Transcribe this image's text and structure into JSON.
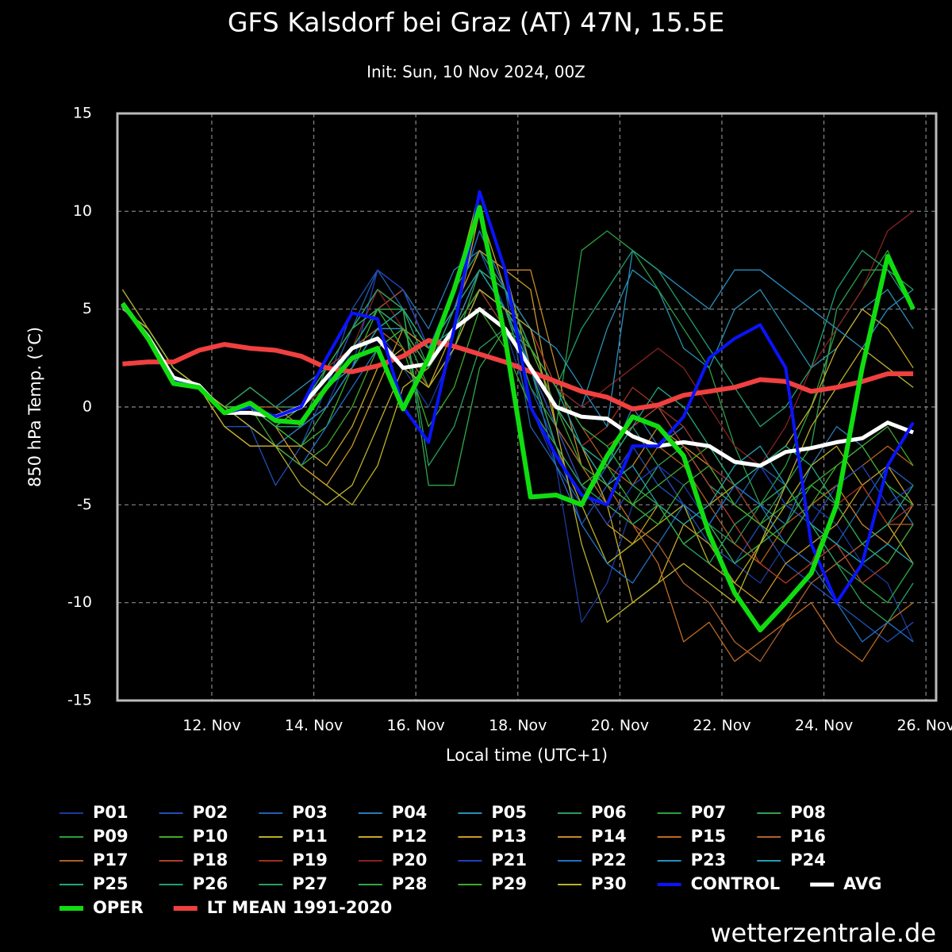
{
  "chart_data": {
    "type": "line",
    "title": "GFS Kalsdorf bei Graz (AT) 47N, 15.5E",
    "subtitle": "Init: Sun, 10 Nov 2024, 00Z",
    "xlabel": "Local time (UTC+1)",
    "ylabel": "850 hPa Temp. (°C)",
    "source": "wetterzentrale.de",
    "grid": true,
    "xlim": [
      10.15,
      26.2
    ],
    "ylim": [
      -15,
      15
    ],
    "yticks": [
      -15,
      -10,
      -5,
      0,
      5,
      10,
      15
    ],
    "xticks": [
      {
        "value": 12,
        "label": "12. Nov"
      },
      {
        "value": 14,
        "label": "14. Nov"
      },
      {
        "value": 16,
        "label": "16. Nov"
      },
      {
        "value": 18,
        "label": "18. Nov"
      },
      {
        "value": 20,
        "label": "20. Nov"
      },
      {
        "value": 22,
        "label": "22. Nov"
      },
      {
        "value": 24,
        "label": "24. Nov"
      },
      {
        "value": 26,
        "label": "26. Nov"
      }
    ],
    "x": [
      10.25,
      10.75,
      11.25,
      11.75,
      12.25,
      12.75,
      13.25,
      13.75,
      14.25,
      14.75,
      15.25,
      15.75,
      16.25,
      16.75,
      17.25,
      17.75,
      18.25,
      18.75,
      19.25,
      19.75,
      20.25,
      20.75,
      21.25,
      21.75,
      22.25,
      22.75,
      23.25,
      23.75,
      24.25,
      24.75,
      25.25,
      25.75
    ],
    "series": [
      {
        "name": "P01",
        "color": "#1a3a9c",
        "values": [
          5,
          4,
          2,
          1,
          0,
          -1,
          -2,
          -1,
          0,
          3,
          4,
          2,
          0,
          3,
          6,
          4,
          0,
          -3,
          -11,
          -9,
          -5,
          -3,
          -4,
          -6,
          -8,
          -9,
          -7,
          -5,
          -6,
          -8,
          -9,
          -12
        ]
      },
      {
        "name": "P02",
        "color": "#1f4fb5",
        "values": [
          5,
          4,
          2,
          1,
          -1,
          -1,
          -4,
          -2,
          1,
          5,
          7,
          6,
          3,
          6,
          8,
          5,
          1,
          -2,
          -6,
          -4,
          -2,
          -4,
          -5,
          -7,
          -8,
          -6,
          -8,
          -9,
          -10,
          -11,
          -12,
          -11
        ]
      },
      {
        "name": "P03",
        "color": "#2060b0",
        "values": [
          6,
          4,
          2,
          1,
          0,
          0,
          -1,
          -1,
          1,
          4,
          7,
          5,
          2,
          5,
          9,
          6,
          -1,
          -3,
          -5,
          -3,
          -1,
          0,
          -2,
          -4,
          -5,
          -3,
          -4,
          -6,
          -7,
          -5,
          -3,
          -4
        ]
      },
      {
        "name": "P04",
        "color": "#2a7ab8",
        "values": [
          5,
          4,
          2,
          1,
          0,
          -1,
          -2,
          -1,
          1,
          3,
          5,
          6,
          4,
          7,
          8,
          6,
          2,
          -2,
          -4,
          -3,
          0,
          -2,
          -1,
          -3,
          -4,
          -5,
          -6,
          -3,
          -1,
          -2,
          -4,
          -6
        ]
      },
      {
        "name": "P05",
        "color": "#2a90b0",
        "values": [
          5,
          4,
          2,
          1,
          0,
          1,
          0,
          1,
          2,
          4,
          5,
          6,
          3,
          5,
          7,
          5,
          3,
          1,
          0,
          4,
          7,
          6,
          3,
          2,
          5,
          6,
          4,
          2,
          3,
          5,
          6,
          4
        ]
      },
      {
        "name": "P06",
        "color": "#2a9a5a",
        "values": [
          5,
          4,
          2,
          1,
          0,
          0,
          -1,
          -1,
          2,
          4,
          6,
          5,
          2,
          6,
          8,
          6,
          3,
          0,
          -2,
          -3,
          -1,
          -3,
          -5,
          -6,
          -7,
          -5,
          -4,
          -6,
          -8,
          -9,
          -10,
          -8
        ]
      },
      {
        "name": "P07",
        "color": "#2aa040",
        "values": [
          5,
          4,
          2,
          1,
          0,
          0,
          -1,
          0,
          1,
          3,
          5,
          4,
          1,
          3,
          7,
          5,
          1,
          -1,
          8,
          9,
          8,
          6,
          4,
          2,
          -2,
          -5,
          -3,
          0,
          4,
          6,
          8,
          5
        ]
      },
      {
        "name": "P08",
        "color": "#30a050",
        "values": [
          5,
          4,
          2,
          1,
          0,
          0,
          -1,
          -2,
          0,
          2,
          4,
          5,
          3,
          4,
          6,
          4,
          2,
          0,
          -2,
          -4,
          -5,
          -3,
          -2,
          -4,
          -5,
          -6,
          -4,
          -2,
          5,
          7,
          7,
          6
        ]
      },
      {
        "name": "P09",
        "color": "#28a038",
        "values": [
          5,
          4,
          2,
          1,
          0,
          1,
          0,
          -1,
          1,
          3,
          5,
          4,
          2,
          4,
          6,
          5,
          2,
          -1,
          -3,
          -5,
          -6,
          -5,
          -7,
          -6,
          -8,
          -7,
          -5,
          -6,
          -7,
          -9,
          -10,
          -8
        ]
      },
      {
        "name": "P10",
        "color": "#3cae28",
        "values": [
          5,
          4,
          2,
          1,
          0,
          0,
          -1,
          -2,
          -1,
          2,
          5,
          3,
          -1,
          1,
          5,
          3,
          0,
          -2,
          -4,
          -3,
          -5,
          -4,
          -3,
          -2,
          -4,
          -6,
          -5,
          -4,
          -3,
          -2,
          -4,
          -5
        ]
      },
      {
        "name": "P11",
        "color": "#b8b020",
        "values": [
          6,
          4,
          2,
          1,
          -1,
          -2,
          -2,
          -3,
          -4,
          -5,
          -3,
          1,
          2,
          6,
          11,
          7,
          2,
          -2,
          -5,
          -8,
          -7,
          -6,
          -5,
          -8,
          -9,
          -7,
          -5,
          -3,
          -2,
          -4,
          -6,
          -8
        ]
      },
      {
        "name": "P12",
        "color": "#c8a828",
        "values": [
          5,
          4,
          2,
          1,
          -1,
          -2,
          -2,
          -2,
          -3,
          -1,
          2,
          3,
          1,
          4,
          10,
          6,
          3,
          0,
          -2,
          -5,
          -10,
          -9,
          -6,
          -5,
          -4,
          -3,
          -2,
          0,
          3,
          5,
          4,
          2
        ]
      },
      {
        "name": "P13",
        "color": "#c89a28",
        "values": [
          5,
          4,
          2,
          1,
          0,
          0,
          -1,
          -3,
          -4,
          -2,
          1,
          4,
          3,
          5,
          8,
          7,
          6,
          -1,
          -4,
          -6,
          -7,
          -5,
          -6,
          -7,
          -9,
          -10,
          -8,
          -7,
          -6,
          -4,
          -3,
          -5
        ]
      },
      {
        "name": "P14",
        "color": "#c88828",
        "values": [
          5,
          4,
          2,
          1,
          0,
          0,
          -1,
          0,
          2,
          4,
          6,
          5,
          3,
          5,
          8,
          7,
          7,
          2,
          -3,
          -4,
          -3,
          -1,
          -2,
          -3,
          -5,
          -6,
          -7,
          -5,
          -4,
          -6,
          -7,
          -5
        ]
      },
      {
        "name": "P15",
        "color": "#c06a20",
        "values": [
          5,
          4,
          2,
          1,
          0,
          0,
          0,
          -1,
          1,
          3,
          5,
          4,
          2,
          4,
          7,
          6,
          3,
          0,
          -2,
          -4,
          -6,
          -8,
          -12,
          -11,
          -13,
          -12,
          -11,
          -10,
          -12,
          -13,
          -11,
          -10
        ]
      },
      {
        "name": "P16",
        "color": "#b06030",
        "values": [
          5,
          4,
          2,
          1,
          0,
          0,
          -1,
          0,
          1,
          3,
          4,
          3,
          1,
          3,
          6,
          5,
          2,
          -1,
          -3,
          -5,
          -6,
          -7,
          -9,
          -10,
          -12,
          -13,
          -11,
          -9,
          -8,
          -7,
          -6,
          -6
        ]
      },
      {
        "name": "P17",
        "color": "#b06020",
        "values": [
          5,
          4,
          2,
          1,
          0,
          0,
          -1,
          -1,
          1,
          2,
          4,
          4,
          2,
          4,
          6,
          5,
          3,
          1,
          -1,
          -3,
          -4,
          -2,
          -3,
          -5,
          -7,
          -8,
          -6,
          -5,
          -4,
          -3,
          -2,
          -3
        ]
      },
      {
        "name": "P18",
        "color": "#b04028",
        "values": [
          5,
          4,
          2,
          1,
          0,
          0,
          -1,
          -1,
          1,
          3,
          5,
          6,
          3,
          5,
          7,
          6,
          4,
          1,
          -1,
          -2,
          -1,
          0,
          -2,
          -4,
          -6,
          -8,
          -9,
          -8,
          -7,
          -9,
          -8,
          -6
        ]
      },
      {
        "name": "P19",
        "color": "#a03020",
        "values": [
          5,
          4,
          2,
          1,
          0,
          1,
          0,
          0,
          2,
          3,
          5,
          4,
          2,
          4,
          6,
          4,
          2,
          0,
          -2,
          -1,
          1,
          0,
          -1,
          -3,
          -4,
          -6,
          -7,
          -8,
          -5,
          -4,
          -6,
          -5
        ]
      },
      {
        "name": "P20",
        "color": "#8a2020",
        "values": [
          5,
          4,
          2,
          1,
          0,
          0,
          -1,
          0,
          1,
          3,
          6,
          4,
          2,
          4,
          6,
          5,
          3,
          1,
          0,
          1,
          2,
          3,
          2,
          0,
          -2,
          -3,
          -1,
          2,
          4,
          6,
          9,
          10
        ]
      },
      {
        "name": "P21",
        "color": "#2040c0",
        "values": [
          5,
          4,
          2,
          1,
          0,
          0,
          -1,
          -1,
          0,
          2,
          7,
          6,
          3,
          4,
          6,
          5,
          2,
          -1,
          -4,
          -6,
          -4,
          -3,
          -5,
          -6,
          -4,
          -3,
          -5,
          -6,
          -4,
          -3,
          -5,
          -4
        ]
      },
      {
        "name": "P22",
        "color": "#2070c8",
        "values": [
          5,
          4,
          2,
          1,
          0,
          -1,
          -2,
          -3,
          -1,
          1,
          3,
          4,
          2,
          5,
          9,
          6,
          2,
          -3,
          -6,
          -8,
          -9,
          -7,
          -5,
          -6,
          -4,
          -5,
          -7,
          -8,
          -10,
          -12,
          -11,
          -12
        ]
      },
      {
        "name": "P23",
        "color": "#2890c0",
        "values": [
          5,
          4,
          2,
          1,
          0,
          0,
          -1,
          -1,
          0,
          2,
          4,
          4,
          2,
          4,
          7,
          6,
          4,
          3,
          1,
          -1,
          8,
          7,
          6,
          5,
          7,
          7,
          6,
          5,
          4,
          3,
          5,
          6
        ]
      },
      {
        "name": "P24",
        "color": "#20a0b0",
        "values": [
          5,
          4,
          2,
          1,
          0,
          0,
          -1,
          -1,
          1,
          2,
          4,
          5,
          3,
          5,
          7,
          5,
          3,
          1,
          -2,
          -4,
          -3,
          -5,
          -6,
          -5,
          -3,
          -2,
          -4,
          -6,
          -7,
          -8,
          -7,
          -8
        ]
      },
      {
        "name": "P25",
        "color": "#20a880",
        "values": [
          5,
          4,
          2,
          1,
          0,
          0,
          -1,
          -1,
          1,
          3,
          5,
          5,
          3,
          4,
          6,
          5,
          2,
          0,
          -2,
          -3,
          -1,
          1,
          0,
          -2,
          -4,
          -3,
          -2,
          -3,
          -5,
          -7,
          -6,
          -4
        ]
      },
      {
        "name": "P26",
        "color": "#20a070",
        "values": [
          5,
          4,
          2,
          1,
          0,
          0,
          -1,
          -1,
          1,
          3,
          5,
          4,
          2,
          5,
          7,
          6,
          3,
          1,
          4,
          6,
          8,
          7,
          5,
          3,
          1,
          -1,
          0,
          2,
          6,
          8,
          7,
          5
        ]
      },
      {
        "name": "P27",
        "color": "#28a060",
        "values": [
          5,
          4,
          2,
          1,
          0,
          1,
          0,
          0,
          2,
          4,
          6,
          5,
          -3,
          -1,
          3,
          4,
          2,
          -2,
          -4,
          -5,
          -6,
          -5,
          -7,
          -8,
          -6,
          -5,
          -4,
          -6,
          -8,
          -10,
          -11,
          -9
        ]
      },
      {
        "name": "P28",
        "color": "#30a848",
        "values": [
          5,
          4,
          2,
          1,
          0,
          0,
          -1,
          0,
          2,
          4,
          5,
          5,
          -4,
          -4,
          2,
          4,
          3,
          1,
          -1,
          -2,
          -4,
          -5,
          -7,
          -6,
          -8,
          -7,
          -6,
          -4,
          -5,
          -7,
          -8,
          -6
        ]
      },
      {
        "name": "P29",
        "color": "#40a830",
        "values": [
          5,
          4,
          2,
          1,
          0,
          0,
          -2,
          -3,
          -2,
          0,
          3,
          4,
          2,
          4,
          6,
          5,
          3,
          0,
          -3,
          -4,
          -5,
          -6,
          -4,
          -3,
          -5,
          -6,
          -7,
          -5,
          -3,
          -2,
          -1,
          -3
        ]
      },
      {
        "name": "P30",
        "color": "#b8b030",
        "values": [
          5,
          4,
          2,
          1,
          0,
          -1,
          -2,
          -4,
          -5,
          -4,
          -1,
          2,
          1,
          3,
          6,
          5,
          4,
          -1,
          -7,
          -11,
          -10,
          -9,
          -8,
          -9,
          -10,
          -7,
          -4,
          -1,
          1,
          3,
          2,
          1
        ]
      },
      {
        "name": "CONTROL",
        "color": "#0a14ff",
        "values": [
          5.2,
          3.5,
          1.3,
          1.0,
          -0.3,
          0.0,
          -0.5,
          0.0,
          2.5,
          4.8,
          4.5,
          0.0,
          -1.8,
          4.0,
          11.0,
          7.0,
          0.0,
          -2.5,
          -4.5,
          -5.0,
          -2.0,
          -2.0,
          -0.5,
          2.5,
          3.5,
          4.2,
          2.0,
          -7.0,
          -10.0,
          -8.0,
          -3.0,
          -0.8
        ]
      },
      {
        "name": "AVG",
        "color": "#ffffff",
        "values": [
          5.2,
          3.6,
          1.5,
          1.1,
          -0.3,
          -0.3,
          -0.5,
          0.0,
          1.5,
          3.0,
          3.5,
          2.0,
          2.2,
          4.0,
          5.0,
          4.0,
          2.0,
          0.0,
          -0.5,
          -0.6,
          -1.5,
          -2.0,
          -1.8,
          -2.0,
          -2.8,
          -3.0,
          -2.3,
          -2.1,
          -1.8,
          -1.6,
          -0.8,
          -1.3
        ]
      },
      {
        "name": "OPER",
        "color": "#10dd10",
        "values": [
          5.3,
          3.5,
          1.2,
          1.0,
          -0.3,
          0.2,
          -0.7,
          -0.8,
          1.0,
          2.5,
          3.0,
          -0.1,
          2.5,
          6.0,
          10.2,
          3.5,
          -4.6,
          -4.5,
          -5.0,
          -2.5,
          -0.5,
          -1.0,
          -2.5,
          -6.5,
          -9.5,
          -11.4,
          -10.0,
          -8.5,
          -5.0,
          2.0,
          7.7,
          5.0
        ]
      },
      {
        "name": "LT MEAN 1991-2020",
        "color": "#f04040",
        "values": [
          2.2,
          2.3,
          2.3,
          2.9,
          3.2,
          3.0,
          2.9,
          2.6,
          2.0,
          1.8,
          2.1,
          2.6,
          3.4,
          3.1,
          2.7,
          2.3,
          1.8,
          1.3,
          0.8,
          0.5,
          -0.1,
          0.1,
          0.6,
          0.8,
          1.0,
          1.4,
          1.3,
          0.8,
          1.0,
          1.3,
          1.7,
          1.7
        ]
      }
    ]
  }
}
